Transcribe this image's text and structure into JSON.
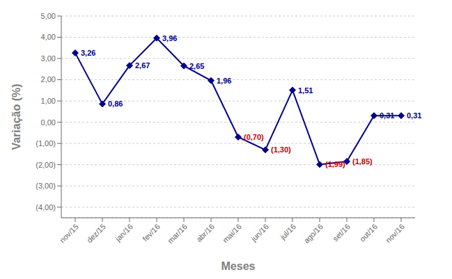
{
  "chart_data": {
    "type": "line",
    "categories": [
      "nov/15",
      "dez/15",
      "jan/16",
      "fev/16",
      "mar/16",
      "abr/16",
      "mai/16",
      "jun/16",
      "jul/16",
      "ago/16",
      "set/16",
      "out/16",
      "nov/16"
    ],
    "values": [
      3.26,
      0.86,
      2.67,
      3.96,
      2.65,
      1.96,
      -0.7,
      -1.3,
      1.51,
      -1.99,
      -1.85,
      0.31,
      0.31
    ],
    "value_labels": [
      "3,26",
      "0,86",
      "2,67",
      "3,96",
      "2,65",
      "1,96",
      "(0,70)",
      "(1,30)",
      "1,51",
      "(1,99)",
      "(1,85)",
      "0,31",
      "0,31"
    ],
    "data_labels": true,
    "color": "#00008B",
    "colors": [
      "#00008B",
      "#00008B",
      "#00008B",
      "#00008B",
      "#00008B",
      "#00008B",
      "#cc0000",
      "#cc0000",
      "#00008B",
      "#cc0000",
      "#cc0000",
      "#00008B",
      "#00008B"
    ],
    "marker": "diamond",
    "xlabel": "Meses",
    "ylabel": "Variação (%)",
    "ylim": [
      -4.5,
      5.0
    ],
    "yticks": [
      {
        "value": 5.0,
        "label": "5,00"
      },
      {
        "value": 4.0,
        "label": "4,00"
      },
      {
        "value": 3.0,
        "label": "3,00"
      },
      {
        "value": 2.0,
        "label": "2,00"
      },
      {
        "value": 1.0,
        "label": "1,00"
      },
      {
        "value": 0.0,
        "label": "0,00"
      },
      {
        "value": -1.0,
        "label": "(1,00)"
      },
      {
        "value": -2.0,
        "label": "(2,00)"
      },
      {
        "value": -3.0,
        "label": "(3,00)"
      },
      {
        "value": -4.0,
        "label": "(4,00)"
      }
    ],
    "grid": true
  }
}
